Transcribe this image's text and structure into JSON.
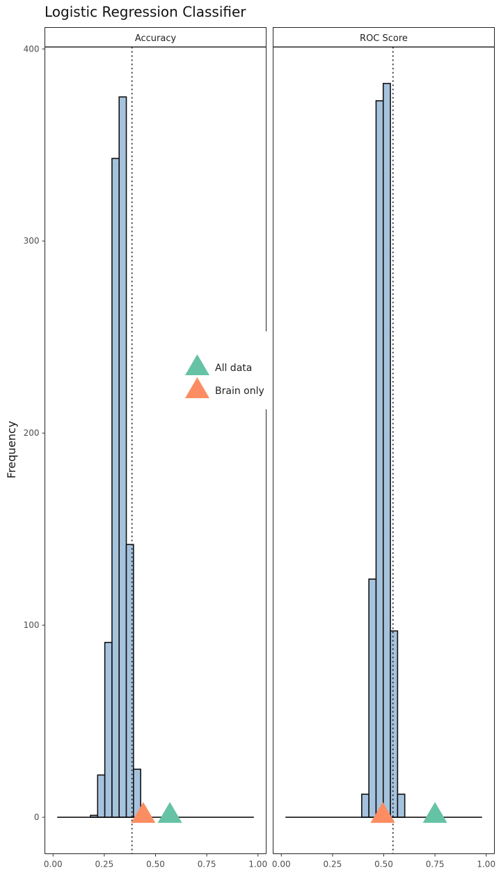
{
  "chart_data": {
    "type": "bar",
    "title": "Logistic Regression Classifier",
    "xlabel": "",
    "ylabel": "Frequency",
    "ylim": [
      -19,
      401
    ],
    "xlim": [
      -0.04,
      1.04
    ],
    "y_ticks": [
      0,
      100,
      200,
      300,
      400
    ],
    "x_ticks": [
      "0.00",
      "0.25",
      "0.50",
      "0.75",
      "1.00"
    ],
    "bin_width": 0.035,
    "grid": false,
    "legend_position": "middle-right",
    "colors": {
      "bar_fill": "#a6c3de",
      "bar_stroke": "#111111",
      "all_data": "#66c2a5",
      "brain_only": "#fc8d62"
    },
    "legend": [
      {
        "label": "All data",
        "color": "#66c2a5",
        "shape": "triangle"
      },
      {
        "label": "Brain only",
        "color": "#fc8d62",
        "shape": "triangle"
      }
    ],
    "panels": [
      {
        "label": "Accuracy",
        "bars": [
          {
            "x": 0.2,
            "y": 1
          },
          {
            "x": 0.235,
            "y": 22
          },
          {
            "x": 0.27,
            "y": 91
          },
          {
            "x": 0.305,
            "y": 343
          },
          {
            "x": 0.34,
            "y": 375
          },
          {
            "x": 0.375,
            "y": 142
          },
          {
            "x": 0.41,
            "y": 25
          }
        ],
        "reference_line": 0.385,
        "markers": [
          {
            "series": "All data",
            "x": 0.57,
            "y": 0
          },
          {
            "series": "Brain only",
            "x": 0.44,
            "y": 0
          }
        ],
        "baseline_range": [
          0.02,
          0.98
        ]
      },
      {
        "label": "ROC Score",
        "bars": [
          {
            "x": 0.41,
            "y": 12
          },
          {
            "x": 0.445,
            "y": 124
          },
          {
            "x": 0.48,
            "y": 373
          },
          {
            "x": 0.515,
            "y": 382
          },
          {
            "x": 0.55,
            "y": 97
          },
          {
            "x": 0.585,
            "y": 12
          }
        ],
        "reference_line": 0.545,
        "markers": [
          {
            "series": "All data",
            "x": 0.75,
            "y": 0
          },
          {
            "series": "Brain only",
            "x": 0.495,
            "y": 0
          }
        ],
        "baseline_range": [
          0.02,
          0.98
        ]
      }
    ]
  }
}
